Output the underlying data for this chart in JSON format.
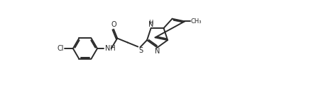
{
  "background_color": "#ffffff",
  "line_color": "#2a2a2a",
  "line_width": 1.4,
  "figsize": [
    4.62,
    1.21
  ],
  "dpi": 100,
  "xlim": [
    -1.5,
    19.5
  ],
  "ylim": [
    -1.5,
    5.5
  ],
  "font_size_atom": 7.0,
  "font_size_small": 6.0
}
